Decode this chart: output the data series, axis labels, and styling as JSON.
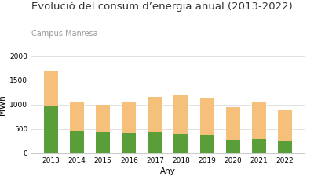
{
  "title": "Evolució del consum d’energia anual (2013-2022)",
  "subtitle": "Campus Manresa",
  "xlabel": "Any",
  "ylabel": "MWh",
  "years": [
    2013,
    2014,
    2015,
    2016,
    2017,
    2018,
    2019,
    2020,
    2021,
    2022
  ],
  "electricitat": [
    960,
    470,
    430,
    420,
    435,
    400,
    370,
    270,
    295,
    255
  ],
  "gas": [
    730,
    580,
    570,
    630,
    720,
    790,
    780,
    680,
    760,
    630
  ],
  "fotovoltaica": [
    0,
    0,
    0,
    0,
    0,
    0,
    0,
    0,
    0,
    0
  ],
  "color_electricitat": "#5a9e3a",
  "color_gas": "#f5c07a",
  "color_fotovoltaica": "#f4a0a0",
  "ylim": [
    0,
    2000
  ],
  "yticks": [
    0,
    500,
    1000,
    1500,
    2000
  ],
  "background_color": "#ffffff",
  "grid_color": "#dddddd",
  "title_fontsize": 9.5,
  "subtitle_fontsize": 7,
  "label_fontsize": 7.5,
  "tick_fontsize": 6.5,
  "legend_fontsize": 6.5
}
